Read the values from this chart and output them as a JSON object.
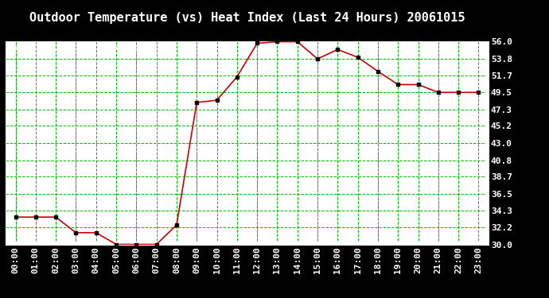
{
  "title": "Outdoor Temperature (vs) Heat Index (Last 24 Hours) 20061015",
  "x_labels": [
    "00:00",
    "01:00",
    "02:00",
    "03:00",
    "04:00",
    "05:00",
    "06:00",
    "07:00",
    "08:00",
    "09:00",
    "10:00",
    "11:00",
    "12:00",
    "13:00",
    "14:00",
    "15:00",
    "16:00",
    "17:00",
    "18:00",
    "19:00",
    "20:00",
    "21:00",
    "22:00",
    "23:00"
  ],
  "y_values": [
    33.5,
    33.5,
    33.5,
    31.5,
    31.5,
    30.0,
    30.0,
    30.0,
    32.5,
    48.2,
    48.5,
    51.5,
    55.8,
    56.0,
    56.0,
    53.8,
    55.0,
    54.0,
    52.2,
    50.5,
    50.5,
    49.5,
    49.5,
    49.5
  ],
  "y_ticks": [
    30.0,
    32.2,
    34.3,
    36.5,
    38.7,
    40.8,
    43.0,
    45.2,
    47.3,
    49.5,
    51.7,
    53.8,
    56.0
  ],
  "ylim": [
    30.0,
    56.0
  ],
  "line_color": "#cc0000",
  "marker_color": "#000000",
  "grid_color": "#00bb00",
  "background_color": "#ffffff",
  "plot_bg_color": "#ffffff",
  "outer_bg_color": "#000000",
  "title_fontsize": 11,
  "copyright_fontsize": 7,
  "tick_fontsize": 8,
  "gray_vlines": [
    0,
    3,
    6,
    9,
    12,
    15,
    18,
    21
  ]
}
